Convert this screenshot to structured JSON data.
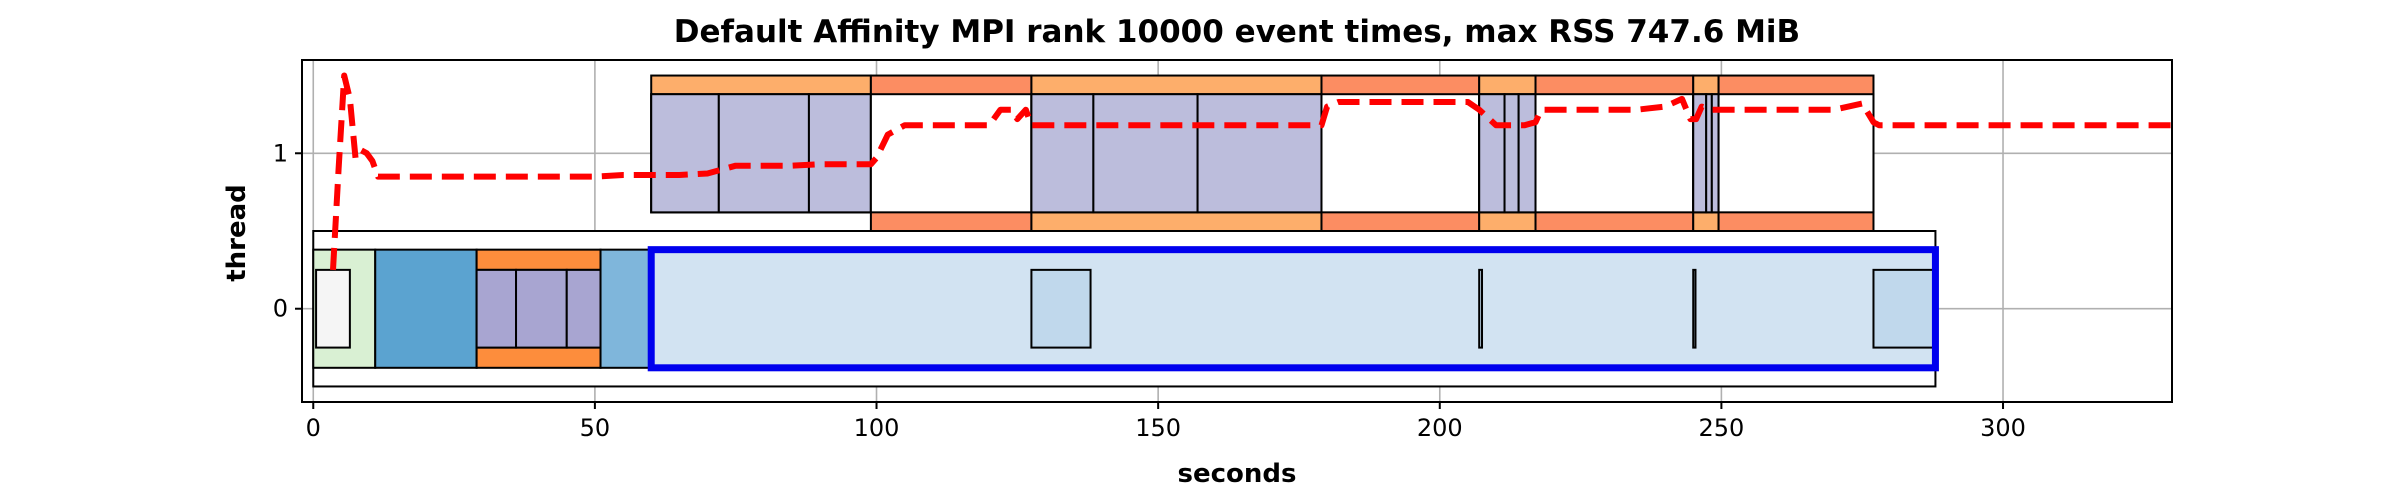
{
  "chart_data": {
    "type": "timeline",
    "title": "Default Affinity MPI rank 10000 event times, max RSS 747.6 MiB",
    "xlabel": "seconds",
    "ylabel": "thread",
    "xlim": [
      -2,
      330
    ],
    "ylim": [
      -0.6,
      1.6
    ],
    "xticks": [
      0,
      50,
      100,
      150,
      200,
      250,
      300
    ],
    "yticks": [
      0,
      1
    ],
    "grid": true,
    "colors": {
      "outline": "#000000",
      "highlight": "#0000ee",
      "rss_line": "#ff0000",
      "orange": "#fdae6b",
      "red_orange": "#fc8d62",
      "dark_orange": "#fd8d3c",
      "lavender": "#bcbddc",
      "purple": "#a8a5d1",
      "green": "#d9f0d3",
      "gray": "#f5f5f5",
      "blue_dark": "#5ba3d0",
      "blue_mid": "#7fb6db",
      "blue_light": "#d2e3f2",
      "blue_box": "#c0d8ec"
    },
    "thread0_blocks": [
      {
        "start": 0,
        "end": 288,
        "y0": -0.5,
        "y1": 0.5,
        "fill": "#ffffff"
      },
      {
        "start": 0,
        "end": 11,
        "y0": -0.38,
        "y1": 0.38,
        "fill": "#d9f0d3"
      },
      {
        "start": 0.5,
        "end": 6.5,
        "y0": -0.25,
        "y1": 0.25,
        "fill": "#f5f5f5"
      },
      {
        "start": 11,
        "end": 29,
        "y0": -0.38,
        "y1": 0.38,
        "fill": "#5ba3d0"
      },
      {
        "start": 29,
        "end": 51,
        "y0": -0.38,
        "y1": 0.38,
        "fill": "#fd8d3c"
      },
      {
        "start": 29,
        "end": 51,
        "y0": -0.25,
        "y1": 0.25,
        "fill": "#a8a5d1"
      },
      {
        "start": 29,
        "end": 36,
        "y0": -0.25,
        "y1": 0.25,
        "fill": "#a8a5d1"
      },
      {
        "start": 36,
        "end": 45,
        "y0": -0.25,
        "y1": 0.25,
        "fill": "#a8a5d1"
      },
      {
        "start": 45,
        "end": 51,
        "y0": -0.25,
        "y1": 0.25,
        "fill": "#a8a5d1"
      },
      {
        "start": 51,
        "end": 60,
        "y0": -0.38,
        "y1": 0.38,
        "fill": "#7fb6db"
      },
      {
        "start": 60,
        "end": 288,
        "y0": -0.38,
        "y1": 0.38,
        "fill": "#d2e3f2"
      },
      {
        "start": 127.5,
        "end": 138,
        "y0": -0.25,
        "y1": 0.25,
        "fill": "#c0d8ec"
      },
      {
        "start": 207,
        "end": 207.5,
        "y0": -0.25,
        "y1": 0.25,
        "fill": "#c0d8ec"
      },
      {
        "start": 245,
        "end": 245.4,
        "y0": -0.25,
        "y1": 0.25,
        "fill": "#c0d8ec"
      },
      {
        "start": 277,
        "end": 288,
        "y0": -0.25,
        "y1": 0.25,
        "fill": "#c0d8ec"
      }
    ],
    "highlight": {
      "start": 60,
      "end": 288,
      "y0": -0.38,
      "y1": 0.38
    },
    "thread1_blocks": [
      {
        "start": 60,
        "end": 99,
        "y0": 0.62,
        "y1": 1.5,
        "fill": "#fdae6b"
      },
      {
        "start": 60,
        "end": 99,
        "y0": 0.62,
        "y1": 1.38,
        "fill": "#bcbddc"
      },
      {
        "start": 60,
        "end": 72,
        "y0": 0.62,
        "y1": 1.38,
        "fill": "#bcbddc"
      },
      {
        "start": 72,
        "end": 88,
        "y0": 0.62,
        "y1": 1.38,
        "fill": "#bcbddc"
      },
      {
        "start": 88,
        "end": 99,
        "y0": 0.62,
        "y1": 1.38,
        "fill": "#bcbddc"
      },
      {
        "start": 99,
        "end": 127.5,
        "y0": 0.5,
        "y1": 1.5,
        "fill": "#fc8d62"
      },
      {
        "start": 99,
        "end": 127.5,
        "y0": 0.62,
        "y1": 1.38,
        "fill": "#ffffff"
      },
      {
        "start": 127.5,
        "end": 179,
        "y0": 0.5,
        "y1": 1.5,
        "fill": "#fdae6b"
      },
      {
        "start": 127.5,
        "end": 179,
        "y0": 0.62,
        "y1": 1.38,
        "fill": "#bcbddc"
      },
      {
        "start": 127.5,
        "end": 138.5,
        "y0": 0.62,
        "y1": 1.38,
        "fill": "#bcbddc"
      },
      {
        "start": 138.5,
        "end": 157,
        "y0": 0.62,
        "y1": 1.38,
        "fill": "#bcbddc"
      },
      {
        "start": 157,
        "end": 179,
        "y0": 0.62,
        "y1": 1.38,
        "fill": "#bcbddc"
      },
      {
        "start": 179,
        "end": 207,
        "y0": 0.5,
        "y1": 1.5,
        "fill": "#fc8d62"
      },
      {
        "start": 179,
        "end": 207,
        "y0": 0.62,
        "y1": 1.38,
        "fill": "#ffffff"
      },
      {
        "start": 207,
        "end": 217,
        "y0": 0.5,
        "y1": 1.5,
        "fill": "#fdae6b"
      },
      {
        "start": 207,
        "end": 217,
        "y0": 0.62,
        "y1": 1.38,
        "fill": "#bcbddc"
      },
      {
        "start": 207,
        "end": 211.5,
        "y0": 0.62,
        "y1": 1.38,
        "fill": "#bcbddc"
      },
      {
        "start": 211.5,
        "end": 214,
        "y0": 0.62,
        "y1": 1.38,
        "fill": "#bcbddc"
      },
      {
        "start": 214,
        "end": 217,
        "y0": 0.62,
        "y1": 1.38,
        "fill": "#bcbddc"
      },
      {
        "start": 217,
        "end": 245,
        "y0": 0.5,
        "y1": 1.5,
        "fill": "#fc8d62"
      },
      {
        "start": 217,
        "end": 245,
        "y0": 0.62,
        "y1": 1.38,
        "fill": "#ffffff"
      },
      {
        "start": 245,
        "end": 249.5,
        "y0": 0.5,
        "y1": 1.5,
        "fill": "#fdae6b"
      },
      {
        "start": 245,
        "end": 249.5,
        "y0": 0.62,
        "y1": 1.38,
        "fill": "#bcbddc"
      },
      {
        "start": 245,
        "end": 247.3,
        "y0": 0.62,
        "y1": 1.38,
        "fill": "#bcbddc"
      },
      {
        "start": 247.3,
        "end": 248.3,
        "y0": 0.62,
        "y1": 1.38,
        "fill": "#bcbddc"
      },
      {
        "start": 248.3,
        "end": 249.5,
        "y0": 0.62,
        "y1": 1.38,
        "fill": "#bcbddc"
      },
      {
        "start": 249.5,
        "end": 277,
        "y0": 0.5,
        "y1": 1.5,
        "fill": "#fc8d62"
      },
      {
        "start": 249.5,
        "end": 277,
        "y0": 0.62,
        "y1": 1.38,
        "fill": "#ffffff"
      }
    ],
    "rss_line": {
      "x": [
        3.5,
        4.5,
        5.5,
        6.5,
        7.5,
        8.5,
        9.5,
        10.5,
        11.5,
        12.5,
        15,
        20,
        25,
        30,
        35,
        40,
        45,
        50,
        55,
        60,
        65,
        70,
        75,
        80,
        85,
        90,
        95,
        99,
        100,
        102,
        105,
        110,
        115,
        120,
        122,
        123,
        124,
        125,
        126.5,
        127.5,
        130,
        135,
        140,
        145,
        150,
        155,
        160,
        165,
        170,
        175,
        179,
        180,
        182,
        185,
        190,
        195,
        200,
        205,
        207,
        210,
        213,
        215,
        217,
        218,
        220,
        225,
        230,
        235,
        240,
        243,
        244.5,
        245.5,
        246.5,
        248,
        249.5,
        252,
        255,
        260,
        265,
        270,
        275,
        277,
        278,
        280,
        290,
        300,
        310,
        320,
        330
      ],
      "y": [
        0.25,
        0.9,
        1.5,
        1.35,
        0.97,
        1.02,
        1.0,
        0.95,
        0.85,
        0.85,
        0.85,
        0.85,
        0.85,
        0.85,
        0.85,
        0.85,
        0.85,
        0.85,
        0.86,
        0.86,
        0.86,
        0.87,
        0.92,
        0.92,
        0.92,
        0.93,
        0.93,
        0.93,
        0.97,
        1.12,
        1.18,
        1.18,
        1.18,
        1.18,
        1.28,
        1.28,
        1.28,
        1.22,
        1.28,
        1.18,
        1.18,
        1.18,
        1.18,
        1.18,
        1.18,
        1.18,
        1.18,
        1.18,
        1.18,
        1.18,
        1.18,
        1.3,
        1.33,
        1.33,
        1.33,
        1.33,
        1.33,
        1.33,
        1.28,
        1.18,
        1.18,
        1.18,
        1.2,
        1.28,
        1.28,
        1.28,
        1.28,
        1.28,
        1.3,
        1.35,
        1.22,
        1.22,
        1.3,
        1.28,
        1.28,
        1.28,
        1.28,
        1.28,
        1.28,
        1.28,
        1.32,
        1.2,
        1.18,
        1.18,
        1.18,
        1.18,
        1.18,
        1.18,
        1.18
      ]
    }
  }
}
